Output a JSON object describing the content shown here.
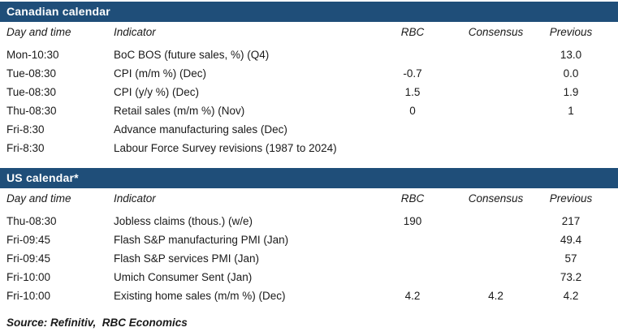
{
  "accent_color": "#1f4e79",
  "columns": {
    "day": "Day and time",
    "indicator": "Indicator",
    "rbc": "RBC",
    "consensus": "Consensus",
    "previous": "Previous"
  },
  "sections": [
    {
      "title": "Canadian calendar",
      "rows": [
        {
          "day": "Mon-10:30",
          "indicator": "BoC BOS (future sales, %) (Q4)",
          "rbc": "",
          "consensus": "",
          "previous": "13.0"
        },
        {
          "day": "Tue-08:30",
          "indicator": "CPI (m/m %) (Dec)",
          "rbc": "-0.7",
          "consensus": "",
          "previous": "0.0"
        },
        {
          "day": "Tue-08:30",
          "indicator": "CPI (y/y %) (Dec)",
          "rbc": "1.5",
          "consensus": "",
          "previous": "1.9"
        },
        {
          "day": "Thu-08:30",
          "indicator": "Retail sales (m/m %) (Nov)",
          "rbc": "0",
          "consensus": "",
          "previous": "1"
        },
        {
          "day": "Fri-8:30",
          "indicator": "Advance manufacturing sales (Dec)",
          "rbc": "",
          "consensus": "",
          "previous": ""
        },
        {
          "day": "Fri-8:30",
          "indicator": "Labour Force Survey revisions (1987 to 2024)",
          "rbc": "",
          "consensus": "",
          "previous": ""
        }
      ]
    },
    {
      "title": "US calendar*",
      "rows": [
        {
          "day": "Thu-08:30",
          "indicator": "Jobless claims (thous.) (w/e)",
          "rbc": "190",
          "consensus": "",
          "previous": "217"
        },
        {
          "day": "Fri-09:45",
          "indicator": "Flash S&P manufacturing PMI (Jan)",
          "rbc": "",
          "consensus": "",
          "previous": "49.4"
        },
        {
          "day": "Fri-09:45",
          "indicator": "Flash S&P services PMI (Jan)",
          "rbc": "",
          "consensus": "",
          "previous": "57"
        },
        {
          "day": "Fri-10:00",
          "indicator": "Umich Consumer Sent (Jan)",
          "rbc": "",
          "consensus": "",
          "previous": "73.2"
        },
        {
          "day": "Fri-10:00",
          "indicator": "Existing home sales (m/m %) (Dec)",
          "rbc": "4.2",
          "consensus": "4.2",
          "previous": "4.2"
        }
      ]
    }
  ],
  "source": "Source: Refinitiv,  RBC Economics"
}
